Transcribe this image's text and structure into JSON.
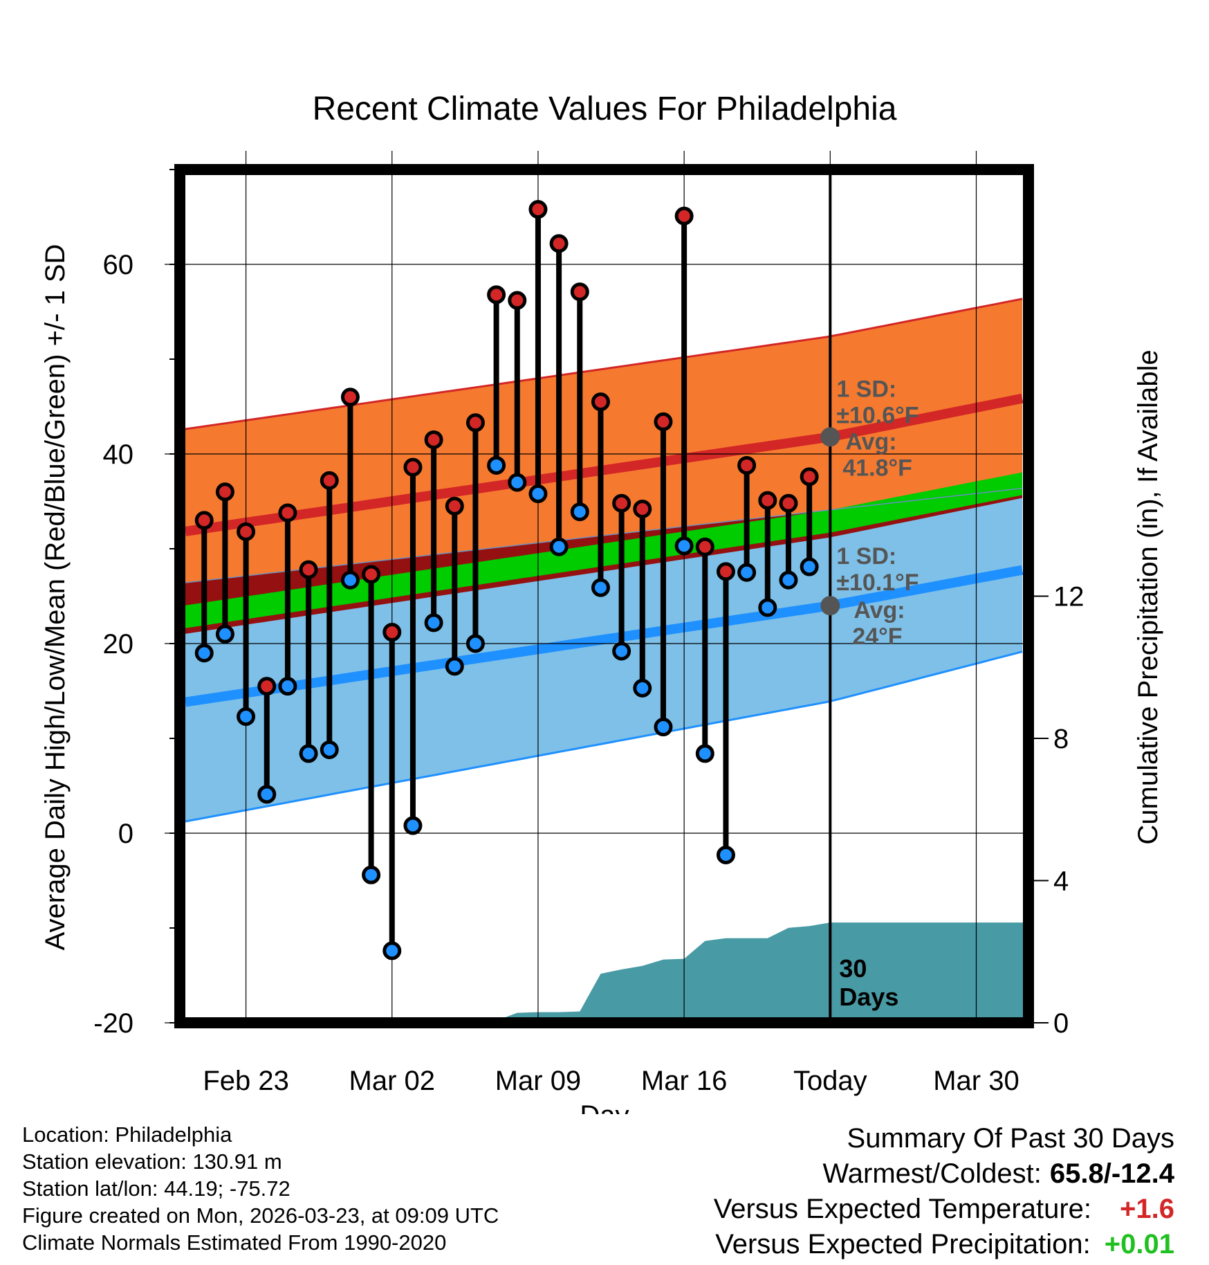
{
  "chart_data": {
    "type": "line",
    "title": "Recent Climate Values For Philadelphia",
    "xlabel": "Day",
    "ylabel": "Average Daily High/Low/Mean (Red/Blue/Green) +/- 1 SD",
    "y2label": "Cumulative Precipitation (in), If Available",
    "xlim": [
      -1.5,
      40
    ],
    "ylim": [
      -20,
      70
    ],
    "y2lim": [
      0,
      24
    ],
    "x_ticks": [
      {
        "x": 2,
        "label": "Feb 23"
      },
      {
        "x": 9,
        "label": "Mar 02"
      },
      {
        "x": 16,
        "label": "Mar 09"
      },
      {
        "x": 23,
        "label": "Mar 16"
      },
      {
        "x": 30,
        "label": "Today"
      },
      {
        "x": 37,
        "label": "Mar 30"
      }
    ],
    "y_ticks": [
      -20,
      0,
      20,
      40,
      60
    ],
    "y2_ticks": [
      0,
      4,
      8,
      12
    ],
    "today_x": 30,
    "days_label": [
      "30",
      "Days"
    ],
    "observed": {
      "x": [
        0,
        1,
        2,
        3,
        4,
        5,
        6,
        7,
        8,
        9,
        10,
        11,
        12,
        13,
        14,
        15,
        16,
        17,
        18,
        19,
        20,
        21,
        22,
        23,
        24,
        25,
        26,
        27,
        28,
        29
      ],
      "high": [
        33,
        36,
        31.8,
        15.5,
        33.8,
        27.8,
        37.2,
        46,
        27.3,
        21.2,
        38.6,
        41.5,
        34.5,
        43.3,
        56.8,
        56.2,
        65.8,
        62.2,
        57.1,
        45.5,
        34.8,
        34.2,
        43.4,
        65.1,
        30.2,
        27.6,
        38.8,
        35.1,
        34.8,
        37.6
      ],
      "low": [
        19,
        21,
        12.3,
        4.1,
        15.5,
        8.4,
        8.8,
        26.7,
        -4.4,
        -12.4,
        0.8,
        22.2,
        17.6,
        20,
        38.8,
        37,
        35.8,
        30.2,
        33.9,
        25.9,
        19.2,
        15.3,
        11.2,
        30.3,
        8.4,
        -2.3,
        27.5,
        23.8,
        26.7,
        28.1
      ]
    },
    "normals": {
      "x": [
        -1,
        30,
        39.3
      ],
      "high_mean": [
        31.8,
        41.8,
        45.9
      ],
      "high_sd": [
        10.8,
        10.6,
        10.5
      ],
      "low_mean": [
        13.8,
        24.0,
        27.8
      ],
      "low_sd": [
        12.6,
        10.1,
        8.6
      ],
      "mean": [
        22.8,
        32.9,
        36.9
      ],
      "mean_band": 1.2
    },
    "precip_cum": {
      "x": [
        -1,
        3.5,
        4,
        7,
        8,
        9,
        12,
        13,
        14,
        15,
        16,
        17,
        18,
        19,
        20,
        21,
        22,
        23,
        24,
        25,
        26,
        27,
        28,
        29,
        30,
        39.3
      ],
      "values": [
        0,
        0,
        0.05,
        0.05,
        0.06,
        0.06,
        0.06,
        0.06,
        0.06,
        0.28,
        0.3,
        0.3,
        0.32,
        1.38,
        1.5,
        1.6,
        1.78,
        1.8,
        2.3,
        2.38,
        2.38,
        2.38,
        2.67,
        2.72,
        2.82,
        2.82
      ]
    },
    "annotations": {
      "high": {
        "sd_label": "1 SD:",
        "sd_value": "±10.6°F",
        "avg_label": "Avg:",
        "avg_value": "41.8°F"
      },
      "low": {
        "sd_label": "1 SD:",
        "sd_value": "±10.1°F",
        "avg_label": "Avg:",
        "avg_value": "24°F"
      }
    },
    "colors": {
      "high_band": "#f57a30",
      "high_line": "#d32626",
      "low_band": "#7ec0e8",
      "low_line": "#1e90ff",
      "overlap_band": "#951010",
      "mean_line": "#00cc00",
      "precip": "#489aa5",
      "high_dot": "#d32626",
      "low_dot": "#1e90ff",
      "annotation": "#555555"
    }
  },
  "info": {
    "location": "Location: Philadelphia",
    "elevation": "Station elevation: 130.91 m",
    "latlon": "Station lat/lon: 44.19; -75.72",
    "created": "Figure created on Mon, 2026-03-23, at 09:09 UTC",
    "normals": "Climate Normals Estimated From 1990-2020"
  },
  "summary": {
    "heading": "Summary Of Past 30 Days",
    "warmest_label": "Warmest/Coldest:",
    "warmest_value": "65.8/-12.4",
    "temp_label": "Versus Expected Temperature:",
    "temp_value": "+1.6",
    "temp_color": "#d32626",
    "precip_label": "Versus Expected Precipitation:",
    "precip_value": "+0.01",
    "precip_color": "#20c020"
  }
}
